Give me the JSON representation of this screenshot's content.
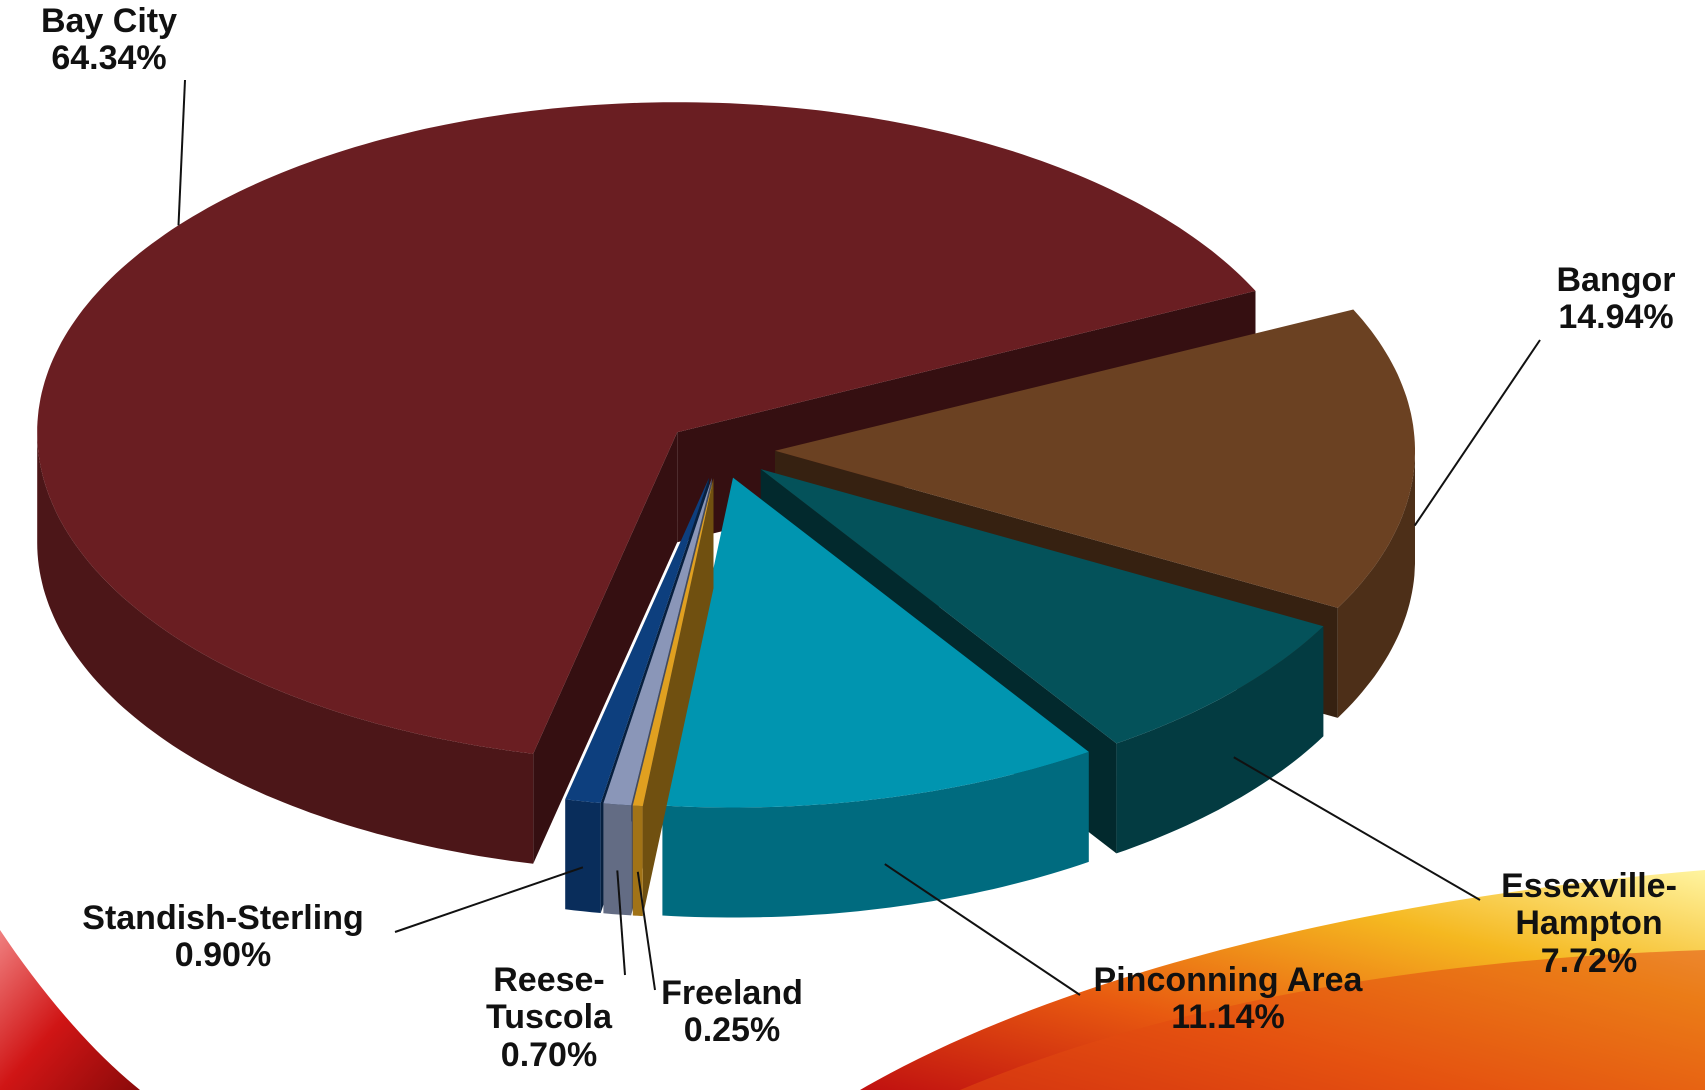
{
  "chart_data": {
    "type": "pie",
    "categories": [
      "Bay City",
      "Bangor",
      "Essexville-Hampton",
      "Pinconning Area",
      "Freeland",
      "Reese-Tuscola",
      "Standish-Sterling"
    ],
    "values": [
      64.34,
      14.94,
      7.72,
      11.14,
      0.25,
      0.7,
      0.9
    ],
    "value_labels": [
      "64.34%",
      "14.94%",
      "7.72%",
      "11.14%",
      "0.25%",
      "0.70%",
      "0.90%"
    ],
    "colors": [
      "#6a1e22",
      "#6b4122",
      "#04525a",
      "#0095b0",
      "#e0a020",
      "#8a96b8",
      "#0d3f7e"
    ]
  }
}
